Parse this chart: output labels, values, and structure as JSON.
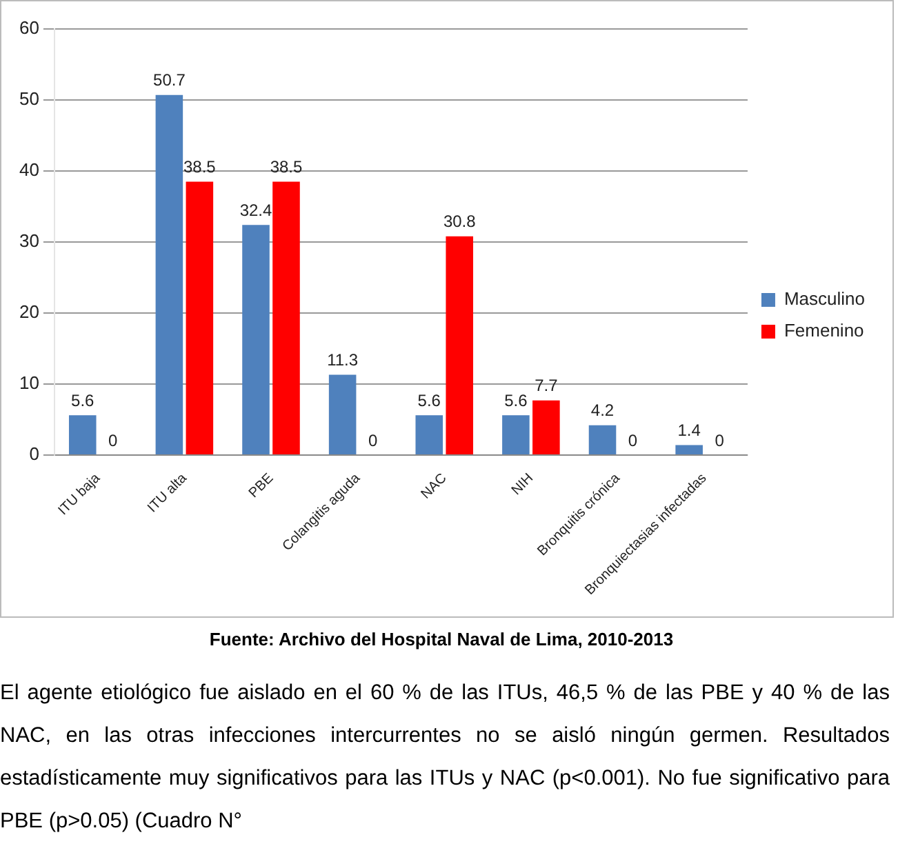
{
  "chart_data": {
    "type": "bar",
    "categories": [
      "ITU baja",
      "ITU alta",
      "PBE",
      "Colangitis aguda",
      "NAC",
      "NIH",
      "Bronquitis crónica",
      "Bronquiectasias infectadas"
    ],
    "series": [
      {
        "name": "Masculino",
        "color": "#4f81bd",
        "values": [
          5.6,
          50.7,
          32.4,
          11.3,
          5.6,
          5.6,
          4.2,
          1.4
        ]
      },
      {
        "name": "Femenino",
        "color": "#ff0000",
        "values": [
          0,
          38.5,
          38.5,
          0,
          30.8,
          7.7,
          0,
          0
        ]
      }
    ],
    "ylim": [
      0,
      60
    ],
    "yticks": [
      0,
      10,
      20,
      30,
      40,
      50,
      60
    ],
    "grid": "y",
    "legend": "right",
    "data_labels": true,
    "annotations": [
      "Fuente: Archivo del Hospital Naval de Lima, 2010-2013",
      "El agente etiológico fue aislado en el 60 % de las ITUs, 46,5 % de las PBE y 40 % de las NAC, en las otras infecciones intercurrentes no se aisló ningún germen. Resultados estadísticamente muy significativos para las ITUs y NAC (p<0.001). No fue significativo para PBE (p>0.05) (Cuadro N°"
    ]
  }
}
